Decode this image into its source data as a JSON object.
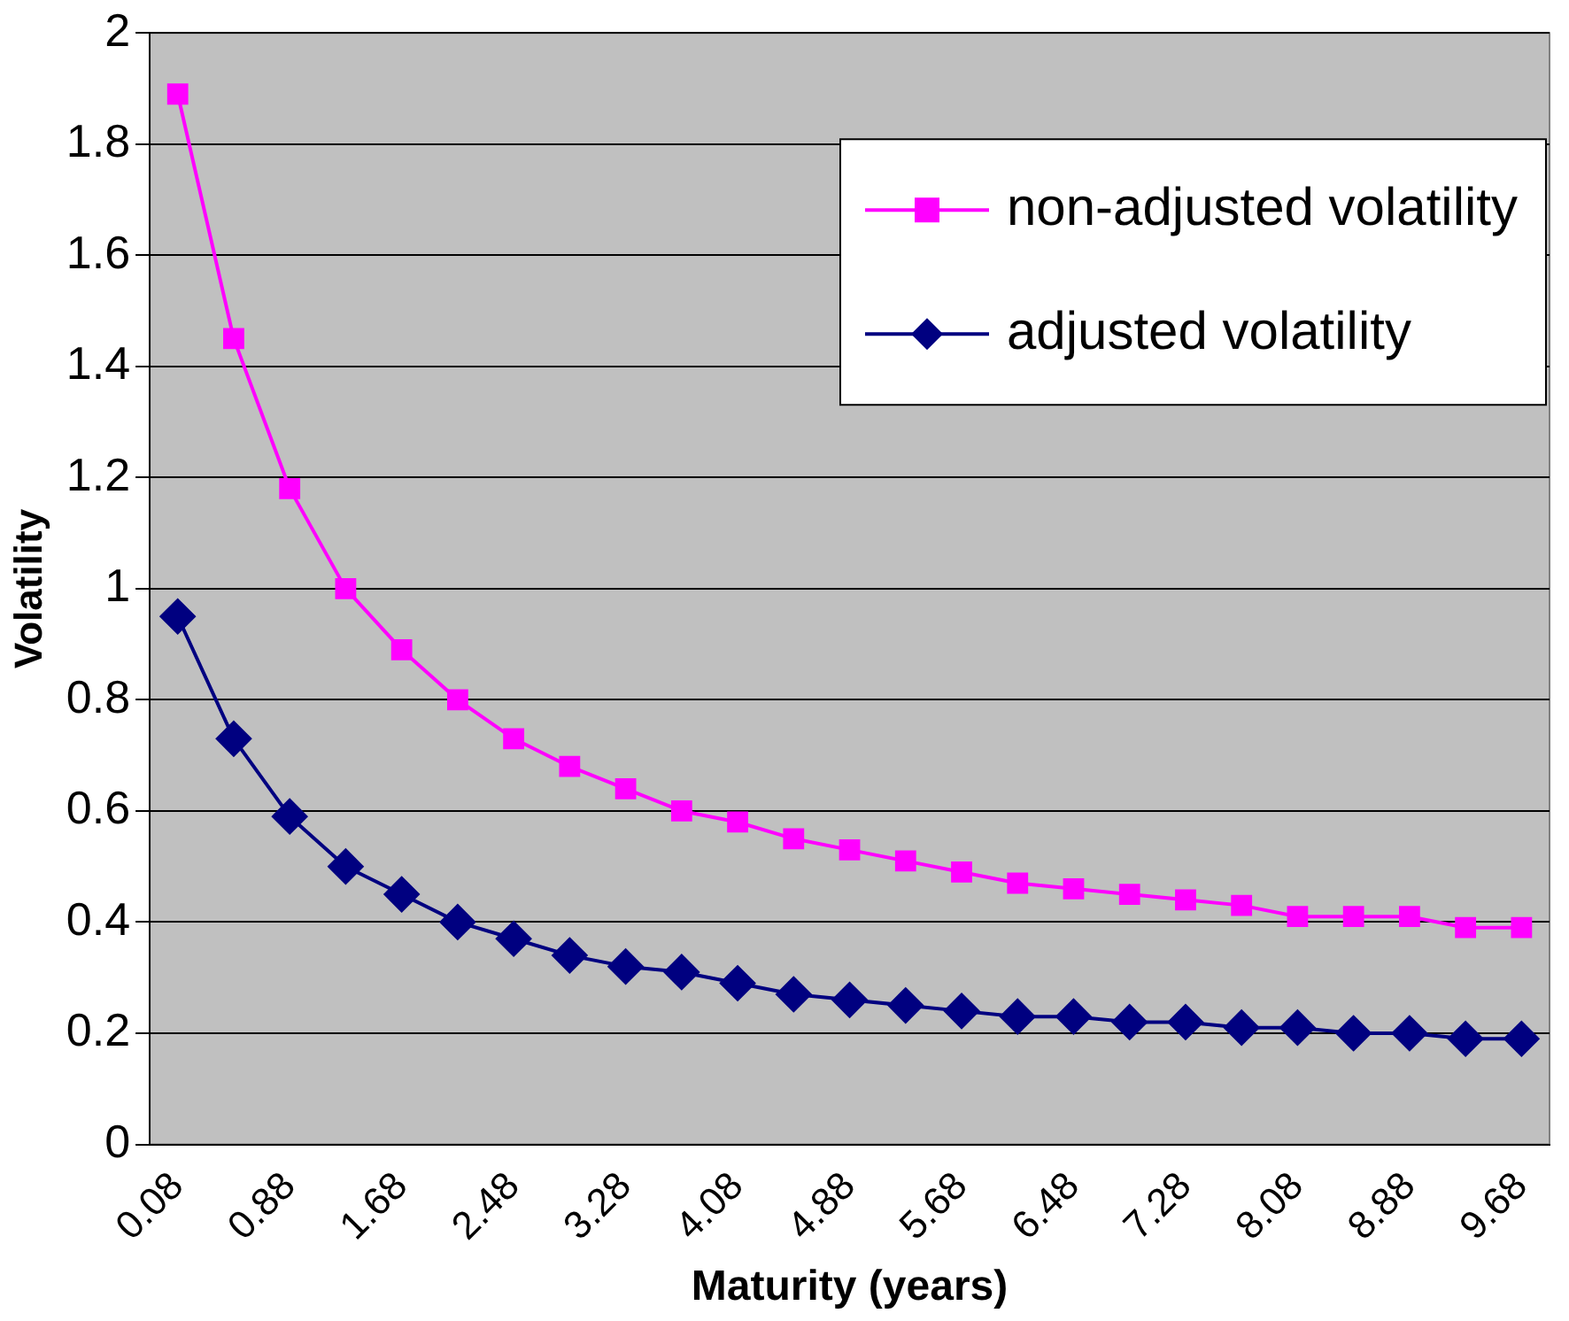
{
  "chart_data": {
    "type": "line",
    "xlabel": "Maturity (years)",
    "ylabel": "Volatility",
    "categories": [
      "0.08",
      null,
      "0.88",
      null,
      "1.68",
      null,
      "2.48",
      null,
      "3.28",
      null,
      "4.08",
      null,
      "4.88",
      null,
      "5.68",
      null,
      "6.48",
      null,
      "7.28",
      null,
      "8.08",
      null,
      "8.88",
      null,
      "9.68"
    ],
    "series": [
      {
        "name": "non-adjusted volatility",
        "color": "#ff00ff",
        "marker": "square",
        "values": [
          1.89,
          1.45,
          1.18,
          1.0,
          0.89,
          0.8,
          0.73,
          0.68,
          0.64,
          0.6,
          0.58,
          0.55,
          0.53,
          0.51,
          0.49,
          0.47,
          0.46,
          0.45,
          0.44,
          0.43,
          0.41,
          0.41,
          0.41,
          0.39,
          0.39
        ]
      },
      {
        "name": "adjusted volatility",
        "color": "#000080",
        "marker": "diamond",
        "values": [
          0.95,
          0.73,
          0.59,
          0.5,
          0.45,
          0.4,
          0.37,
          0.34,
          0.32,
          0.31,
          0.29,
          0.27,
          0.26,
          0.25,
          0.24,
          0.23,
          0.23,
          0.22,
          0.22,
          0.21,
          0.21,
          0.2,
          0.2,
          0.19,
          0.19
        ]
      }
    ],
    "ylim": [
      0,
      2
    ],
    "yticks": [
      0,
      0.2,
      0.4,
      0.6,
      0.8,
      1,
      1.2,
      1.4,
      1.6,
      1.8,
      2
    ],
    "grid": "y",
    "legend": "top right",
    "line_style": "solid"
  }
}
